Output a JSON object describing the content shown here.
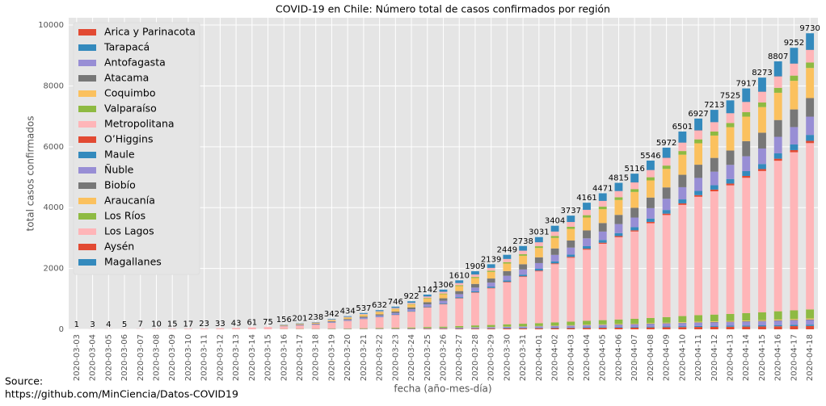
{
  "chart_data": {
    "type": "stacked_bar",
    "title": "COVID-19 en Chile: Número total de casos confirmados por región",
    "x_label": "fecha (año-mes-día)",
    "y_label": "total casos confirmados",
    "source": [
      "Source:",
      "https://github.com/MinCiencia/Datos-COVID19"
    ],
    "categories": [
      "2020-03-03",
      "2020-03-04",
      "2020-03-05",
      "2020-03-06",
      "2020-03-07",
      "2020-03-08",
      "2020-03-09",
      "2020-03-10",
      "2020-03-11",
      "2020-03-12",
      "2020-03-13",
      "2020-03-14",
      "2020-03-15",
      "2020-03-16",
      "2020-03-17",
      "2020-03-18",
      "2020-03-19",
      "2020-03-20",
      "2020-03-21",
      "2020-03-22",
      "2020-03-23",
      "2020-03-24",
      "2020-03-25",
      "2020-03-26",
      "2020-03-27",
      "2020-03-28",
      "2020-03-29",
      "2020-03-30",
      "2020-03-31",
      "2020-04-01",
      "2020-04-02",
      "2020-04-03",
      "2020-04-04",
      "2020-04-05",
      "2020-04-06",
      "2020-04-07",
      "2020-04-08",
      "2020-04-09",
      "2020-04-10",
      "2020-04-11",
      "2020-04-12",
      "2020-04-13",
      "2020-04-14",
      "2020-04-15",
      "2020-04-16",
      "2020-04-17",
      "2020-04-18"
    ],
    "totals": [
      1,
      3,
      4,
      5,
      7,
      10,
      15,
      17,
      23,
      33,
      43,
      61,
      75,
      156,
      201,
      238,
      342,
      434,
      537,
      632,
      746,
      922,
      1142,
      1306,
      1610,
      1909,
      2139,
      2449,
      2738,
      3031,
      3404,
      3737,
      4161,
      4471,
      4815,
      5116,
      5546,
      5972,
      6501,
      6927,
      7213,
      7525,
      7917,
      8273,
      8807,
      9252,
      9730
    ],
    "series": [
      {
        "name": "Arica y Parinacota",
        "color": "#E24A33",
        "values": [
          0,
          0,
          0,
          0,
          0,
          0,
          0,
          0,
          0,
          0,
          0,
          0,
          0,
          2,
          2,
          3,
          4,
          5,
          6,
          7,
          8,
          10,
          13,
          15,
          18,
          22,
          24,
          28,
          31,
          34,
          38,
          42,
          47,
          51,
          54,
          58,
          63,
          68,
          73,
          78,
          82,
          85,
          90,
          94,
          100,
          105,
          110
        ]
      },
      {
        "name": "Tarapacá",
        "color": "#348ABD",
        "values": [
          0,
          0,
          0,
          0,
          0,
          0,
          0,
          0,
          0,
          0,
          0,
          0,
          0,
          1,
          1,
          1,
          2,
          2,
          2,
          3,
          3,
          4,
          5,
          6,
          7,
          9,
          10,
          11,
          13,
          14,
          16,
          17,
          19,
          21,
          22,
          24,
          26,
          28,
          30,
          32,
          33,
          35,
          37,
          38,
          41,
          43,
          45
        ]
      },
      {
        "name": "Antofagasta",
        "color": "#988ED5",
        "values": [
          0,
          0,
          0,
          0,
          0,
          0,
          0,
          0,
          0,
          0,
          0,
          0,
          0,
          2,
          3,
          4,
          5,
          7,
          8,
          10,
          12,
          14,
          18,
          20,
          25,
          29,
          33,
          38,
          42,
          47,
          52,
          58,
          64,
          69,
          74,
          79,
          86,
          92,
          100,
          107,
          111,
          116,
          122,
          128,
          136,
          143,
          150
        ]
      },
      {
        "name": "Atacama",
        "color": "#777777",
        "values": [
          0,
          0,
          0,
          0,
          0,
          0,
          0,
          0,
          0,
          0,
          0,
          0,
          0,
          0,
          0,
          0,
          1,
          1,
          1,
          1,
          2,
          2,
          2,
          3,
          3,
          4,
          4,
          5,
          6,
          6,
          7,
          8,
          9,
          9,
          10,
          11,
          11,
          12,
          13,
          14,
          15,
          15,
          16,
          17,
          18,
          19,
          20
        ]
      },
      {
        "name": "Coquimbo",
        "color": "#FBC15E",
        "values": [
          0,
          0,
          0,
          0,
          0,
          0,
          0,
          0,
          0,
          0,
          0,
          0,
          0,
          0,
          1,
          1,
          1,
          1,
          2,
          2,
          2,
          3,
          4,
          4,
          5,
          6,
          7,
          8,
          8,
          9,
          10,
          12,
          13,
          14,
          15,
          16,
          17,
          18,
          20,
          21,
          22,
          23,
          24,
          26,
          27,
          29,
          30
        ]
      },
      {
        "name": "Valparaíso",
        "color": "#8EBA42",
        "values": [
          0,
          0,
          0,
          0,
          0,
          0,
          0,
          0,
          0,
          0,
          0,
          0,
          0,
          5,
          6,
          7,
          11,
          13,
          17,
          20,
          23,
          28,
          35,
          40,
          50,
          59,
          66,
          76,
          84,
          93,
          105,
          115,
          128,
          138,
          148,
          158,
          171,
          184,
          200,
          214,
          222,
          232,
          244,
          255,
          272,
          285,
          300
        ]
      },
      {
        "name": "Metropolitana",
        "color": "#FFB5B8",
        "values": [
          1,
          3,
          4,
          5,
          7,
          10,
          15,
          17,
          23,
          33,
          43,
          61,
          75,
          87,
          114,
          134,
          192,
          245,
          301,
          354,
          419,
          519,
          641,
          733,
          905,
          1072,
          1201,
          1375,
          1538,
          1703,
          1914,
          2100,
          2338,
          2511,
          2705,
          2870,
          3113,
          3354,
          3654,
          3891,
          4051,
          4226,
          4447,
          4645,
          4946,
          5196,
          5465
        ]
      },
      {
        "name": "O’Higgins",
        "color": "#E24A33",
        "values": [
          0,
          0,
          0,
          0,
          0,
          0,
          0,
          0,
          0,
          0,
          0,
          0,
          0,
          1,
          2,
          2,
          3,
          3,
          4,
          5,
          6,
          7,
          9,
          10,
          12,
          15,
          16,
          19,
          21,
          23,
          26,
          29,
          32,
          34,
          37,
          39,
          43,
          46,
          50,
          53,
          56,
          58,
          61,
          64,
          68,
          71,
          75
        ]
      },
      {
        "name": "Maule",
        "color": "#348ABD",
        "values": [
          0,
          0,
          0,
          0,
          0,
          0,
          0,
          0,
          0,
          0,
          0,
          0,
          0,
          3,
          4,
          5,
          7,
          9,
          11,
          13,
          15,
          18,
          23,
          26,
          32,
          38,
          43,
          49,
          55,
          61,
          68,
          75,
          83,
          90,
          97,
          103,
          111,
          120,
          130,
          139,
          145,
          151,
          159,
          166,
          176,
          185,
          195
        ]
      },
      {
        "name": "Ñuble",
        "color": "#988ED5",
        "values": [
          0,
          0,
          0,
          0,
          0,
          0,
          0,
          0,
          0,
          0,
          0,
          0,
          0,
          10,
          12,
          15,
          21,
          27,
          33,
          39,
          46,
          57,
          70,
          81,
          99,
          118,
          132,
          151,
          169,
          187,
          210,
          230,
          257,
          276,
          297,
          315,
          342,
          368,
          401,
          427,
          445,
          464,
          488,
          510,
          543,
          571,
          600
        ]
      },
      {
        "name": "Biobío",
        "color": "#777777",
        "values": [
          0,
          0,
          0,
          0,
          0,
          0,
          0,
          0,
          0,
          0,
          0,
          0,
          0,
          10,
          13,
          15,
          21,
          27,
          34,
          40,
          47,
          58,
          72,
          82,
          101,
          120,
          134,
          154,
          172,
          190,
          213,
          234,
          261,
          280,
          302,
          321,
          348,
          374,
          408,
          434,
          452,
          472,
          496,
          519,
          552,
          580,
          610
        ]
      },
      {
        "name": "Araucanía",
        "color": "#FBC15E",
        "values": [
          0,
          0,
          0,
          0,
          0,
          0,
          0,
          0,
          0,
          0,
          0,
          0,
          0,
          16,
          20,
          24,
          35,
          44,
          55,
          64,
          76,
          94,
          116,
          133,
          164,
          194,
          218,
          249,
          279,
          308,
          346,
          380,
          423,
          455,
          490,
          521,
          564,
          608,
          661,
          705,
          734,
          766,
          806,
          842,
          896,
          941,
          990
        ]
      },
      {
        "name": "Los Ríos",
        "color": "#8EBA42",
        "values": [
          0,
          0,
          0,
          0,
          0,
          0,
          0,
          0,
          0,
          0,
          0,
          0,
          0,
          3,
          4,
          4,
          6,
          8,
          10,
          12,
          14,
          17,
          21,
          24,
          30,
          35,
          40,
          45,
          51,
          56,
          63,
          69,
          77,
          83,
          89,
          95,
          103,
          110,
          120,
          128,
          133,
          139,
          146,
          153,
          163,
          171,
          180
        ]
      },
      {
        "name": "Los Lagos",
        "color": "#FFB5B8",
        "values": [
          0,
          0,
          0,
          0,
          0,
          0,
          0,
          0,
          0,
          0,
          0,
          0,
          0,
          7,
          8,
          10,
          14,
          18,
          23,
          27,
          31,
          39,
          48,
          55,
          68,
          80,
          90,
          103,
          115,
          128,
          143,
          157,
          175,
          188,
          203,
          216,
          234,
          252,
          274,
          292,
          304,
          317,
          334,
          349,
          371,
          390,
          410
        ]
      },
      {
        "name": "Aysén",
        "color": "#E24A33",
        "values": [
          0,
          0,
          0,
          0,
          0,
          0,
          0,
          0,
          0,
          0,
          0,
          0,
          0,
          0,
          0,
          0,
          0,
          0,
          0,
          0,
          0,
          0,
          1,
          1,
          1,
          1,
          1,
          1,
          1,
          2,
          2,
          2,
          2,
          2,
          2,
          3,
          3,
          3,
          3,
          4,
          4,
          4,
          4,
          4,
          5,
          5,
          5
        ]
      },
      {
        "name": "Magallanes",
        "color": "#348ABD",
        "values": [
          0,
          0,
          0,
          0,
          0,
          0,
          0,
          0,
          0,
          0,
          0,
          0,
          0,
          9,
          11,
          13,
          19,
          24,
          30,
          35,
          42,
          52,
          64,
          73,
          90,
          107,
          120,
          137,
          153,
          170,
          191,
          209,
          233,
          250,
          270,
          287,
          311,
          335,
          364,
          388,
          404,
          422,
          443,
          463,
          493,
          518,
          545
        ]
      }
    ],
    "ylim": [
      0,
      10240
    ],
    "yticks": [
      0,
      2000,
      4000,
      6000,
      8000,
      10000
    ],
    "grid": true,
    "legend": "upper left"
  }
}
